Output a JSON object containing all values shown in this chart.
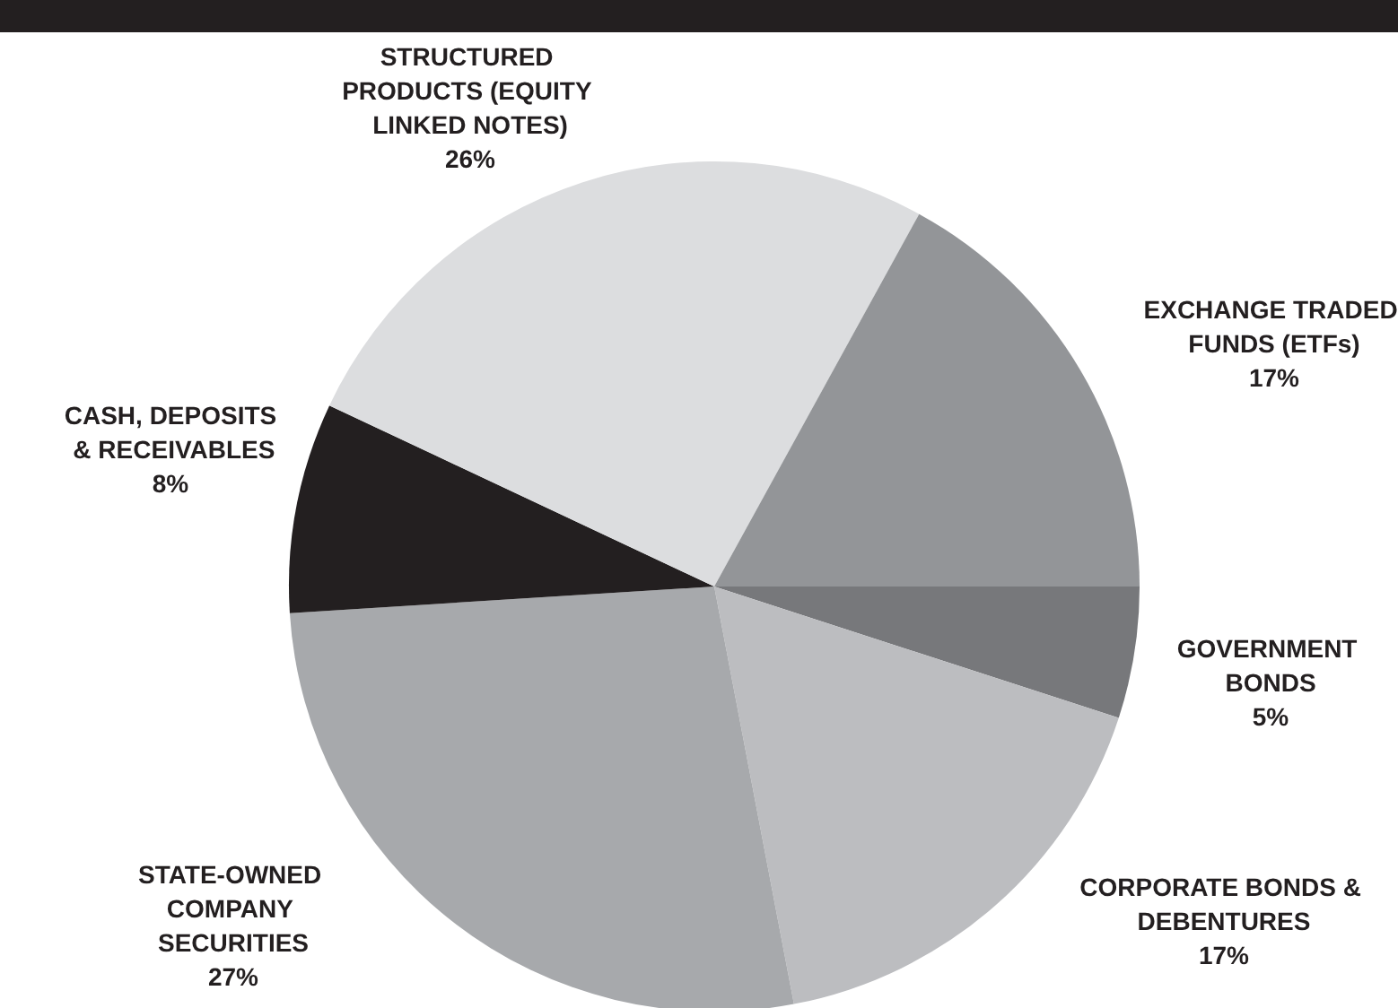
{
  "chart_data": {
    "type": "pie",
    "categories": [
      "GOVERNMENT BONDS",
      "CORPORATE BONDS & DEBENTURES",
      "STATE-OWNED COMPANY SECURITIES",
      "CASH, DEPOSITS & RECEIVABLES",
      "STRUCTURED PRODUCTS (EQUITY LINKED NOTES)",
      "EXCHANGE TRADED FUNDS (ETFs)"
    ],
    "values": [
      5,
      17,
      27,
      8,
      26,
      17
    ],
    "colors": [
      "#77787b",
      "#bcbdc0",
      "#a7a9ac",
      "#231f20",
      "#dcdddf",
      "#939598"
    ],
    "value_labels": [
      "5%",
      "17%",
      "27%",
      "8%",
      "26%",
      "17%"
    ],
    "legend": false
  }
}
